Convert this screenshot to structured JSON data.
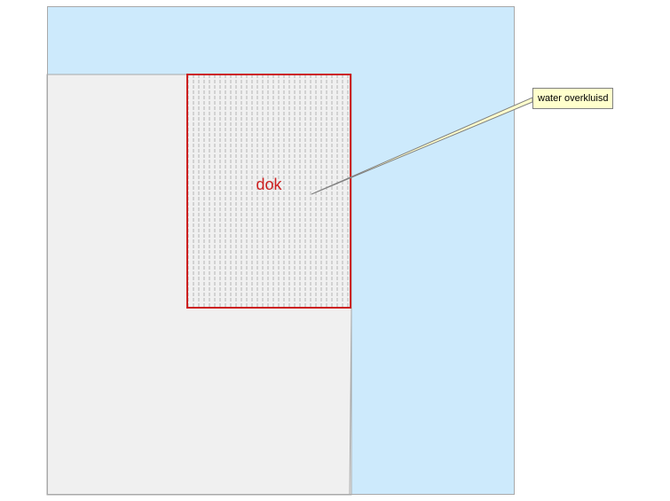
{
  "map": {
    "colors": {
      "water": "#cdeafc",
      "land": "#f0f0f0",
      "border": "#a9a9a9",
      "dok_outline": "#cc1f1f",
      "dok_hatch": "#b5b5b5",
      "dok_label": "#cc1f1f",
      "callout_line": "#808080",
      "callout_fill": "#ffffcc"
    },
    "features": {
      "dok": {
        "label": "dok"
      }
    },
    "callout": {
      "text": "water overkluisd"
    }
  }
}
